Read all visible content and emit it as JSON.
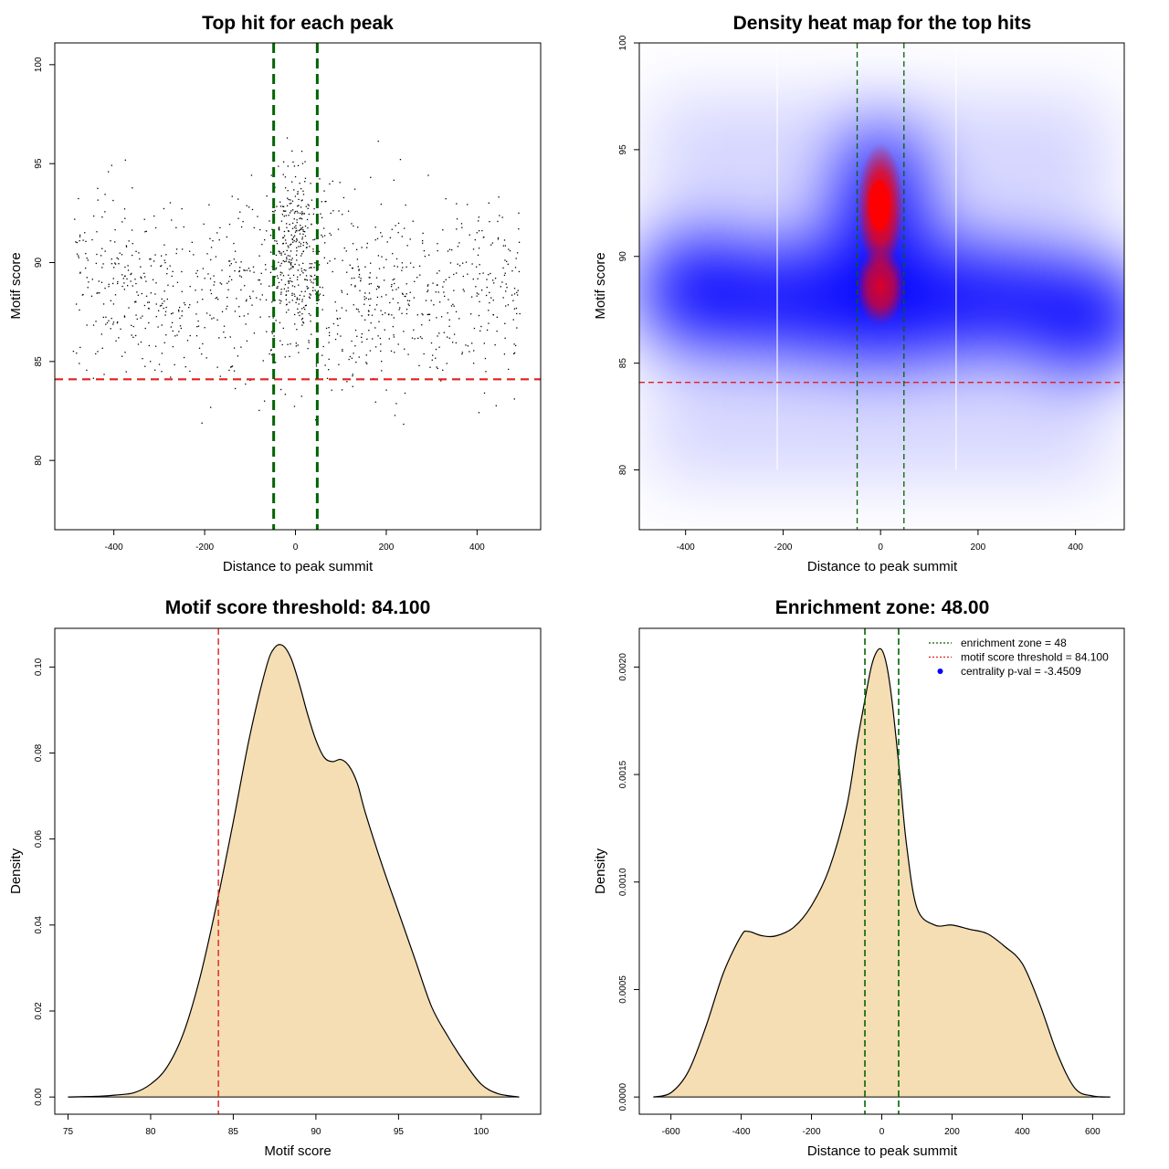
{
  "chart_data": [
    {
      "id": "scatter",
      "type": "scatter",
      "title": "Top hit for each peak",
      "xlabel": "Distance to peak summit",
      "ylabel": "Motif score",
      "xlim": [
        -530,
        540
      ],
      "ylim": [
        76.5,
        101.1
      ],
      "xticks": [
        -400,
        -200,
        0,
        200,
        400
      ],
      "yticks": [
        80,
        85,
        90,
        95,
        100
      ],
      "n_points": 1300,
      "threshold_y": 84.1,
      "zone_x": [
        -48,
        48
      ],
      "threshold_color": "#e02020",
      "zone_color": "#006400"
    },
    {
      "id": "heatmap",
      "type": "heatmap",
      "title": "Density heat map for the top hits",
      "xlabel": "Distance to peak summit",
      "ylabel": "Motif score",
      "xlim": [
        -495,
        500
      ],
      "ylim": [
        77.2,
        100.0
      ],
      "xticks": [
        -400,
        -200,
        0,
        200,
        400
      ],
      "yticks": [
        80,
        85,
        90,
        95,
        100
      ],
      "threshold_y": 84.1,
      "zone_x": [
        -48,
        48
      ],
      "grid_x": [
        -212,
        155
      ],
      "density_peaks": [
        {
          "x": 0,
          "y": 92.3,
          "weight": 1.0
        },
        {
          "x": 0,
          "y": 88.4,
          "weight": 0.9
        },
        {
          "x": -370,
          "y": 88.4,
          "weight": 0.45
        },
        {
          "x": 420,
          "y": 87.2,
          "weight": 0.45
        }
      ],
      "colors": [
        "#ffffff",
        "#0000ff",
        "#ff0000"
      ]
    },
    {
      "id": "score_density",
      "type": "area",
      "title": "Motif score threshold: 84.100",
      "xlabel": "Motif score",
      "ylabel": "Density",
      "xlim": [
        74.2,
        103.6
      ],
      "ylim": [
        -0.004,
        0.109
      ],
      "xticks": [
        75,
        80,
        85,
        90,
        95,
        100
      ],
      "yticks": [
        0.0,
        0.02,
        0.04,
        0.06,
        0.08,
        0.1
      ],
      "ytick_labels": [
        "0.00",
        "0.02",
        "0.04",
        "0.06",
        "0.08",
        "0.10"
      ],
      "x": [
        75,
        77,
        78,
        79,
        80,
        81,
        82,
        83,
        84,
        85,
        86,
        87,
        87.5,
        88,
        88.5,
        89,
        89.5,
        90,
        90.5,
        91,
        91.5,
        92,
        92.5,
        93,
        94,
        95,
        96,
        97,
        98,
        99,
        100,
        101,
        102.3
      ],
      "y": [
        0.0,
        0.0002,
        0.0005,
        0.001,
        0.003,
        0.007,
        0.015,
        0.028,
        0.045,
        0.064,
        0.084,
        0.1,
        0.1045,
        0.105,
        0.102,
        0.096,
        0.089,
        0.083,
        0.079,
        0.078,
        0.0785,
        0.077,
        0.073,
        0.066,
        0.054,
        0.043,
        0.032,
        0.021,
        0.014,
        0.008,
        0.003,
        0.0008,
        0.0
      ],
      "threshold_x": 84.1,
      "fill_color": "#f5deb3",
      "threshold_color": "#e02020"
    },
    {
      "id": "distance_density",
      "type": "area",
      "title": "Enrichment zone: 48.00",
      "xlabel": "Distance to peak summit",
      "ylabel": "Density",
      "xlim": [
        -690,
        690
      ],
      "ylim": [
        -8e-05,
        0.00218
      ],
      "xticks": [
        -600,
        -400,
        -200,
        0,
        200,
        400,
        600
      ],
      "yticks": [
        0.0,
        0.0005,
        0.001,
        0.0015,
        0.002
      ],
      "ytick_labels": [
        "0.0000",
        "0.0005",
        "0.0010",
        "0.0015",
        "0.0020"
      ],
      "x": [
        -650,
        -600,
        -550,
        -500,
        -450,
        -400,
        -380,
        -340,
        -300,
        -250,
        -200,
        -150,
        -100,
        -70,
        -50,
        -30,
        -15,
        0,
        15,
        30,
        50,
        70,
        100,
        150,
        200,
        250,
        300,
        350,
        400,
        450,
        500,
        550,
        600,
        650
      ],
      "y": [
        0.0,
        2e-05,
        0.00012,
        0.00033,
        0.00058,
        0.00075,
        0.00077,
        0.00075,
        0.00075,
        0.00079,
        0.00089,
        0.00106,
        0.00135,
        0.00165,
        0.00183,
        0.002,
        0.00207,
        0.00208,
        0.002,
        0.00183,
        0.00152,
        0.00118,
        0.00088,
        0.0008,
        0.0008,
        0.00078,
        0.00076,
        0.0007,
        0.00062,
        0.00043,
        0.0002,
        4e-05,
        5e-06,
        0.0
      ],
      "zone_x": [
        -48,
        48
      ],
      "fill_color": "#f5deb3",
      "legend": {
        "position": "top-right",
        "entries": [
          {
            "label": "enrichment zone = 48",
            "color": "#006400",
            "kind": "line"
          },
          {
            "label": "motif score threshold = 84.100",
            "color": "#e02020",
            "kind": "line"
          },
          {
            "label": "centrality p-val = -3.4509",
            "color": "#0000ff",
            "kind": "point"
          }
        ]
      }
    }
  ]
}
